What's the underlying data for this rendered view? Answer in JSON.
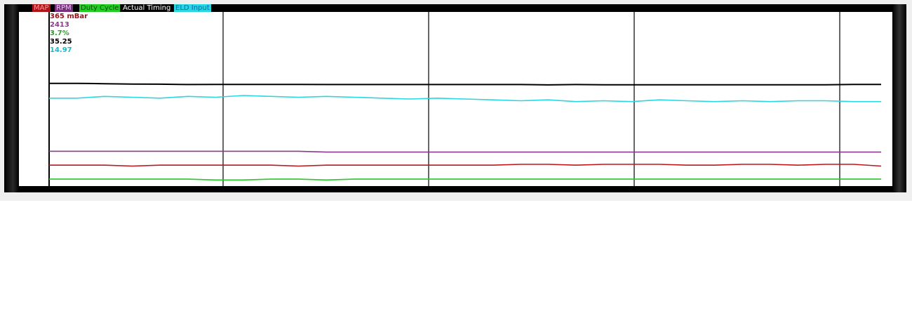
{
  "chart_data": {
    "type": "line",
    "title": "",
    "xlabel": "",
    "ylabel": "",
    "ylim": [
      0,
      100
    ],
    "grid": true,
    "legend_placement": "top-left",
    "series": [
      {
        "name": "MAP",
        "color": "#c0151b",
        "label_bg": "#b01419",
        "label_fg": "#ff9aa0",
        "readout": "365 mBar",
        "values": [
          12,
          12,
          12,
          11.5,
          12,
          12,
          12,
          12,
          12,
          11.5,
          12,
          12,
          12,
          12,
          12,
          12,
          12,
          12.5,
          12.5,
          12,
          12.5,
          12.5,
          12.5,
          12,
          12,
          12.5,
          12.5,
          12,
          12.5,
          12.5,
          11.5
        ]
      },
      {
        "name": "RPM",
        "color": "#8b3a8f",
        "label_bg": "#7a2f80",
        "label_fg": "#e8c8ea",
        "readout": "2413",
        "values": [
          20,
          20,
          20,
          20,
          20,
          20,
          20,
          20,
          20,
          20,
          19.5,
          19.5,
          19.5,
          19.5,
          19.5,
          19.5,
          19.5,
          19.5,
          19.5,
          19.5,
          19.5,
          19.5,
          19.5,
          19.5,
          19.5,
          19.5,
          19.5,
          19.5,
          19.5,
          19.5,
          19.5
        ]
      },
      {
        "name": "Duty Cycle",
        "color": "#22cc22",
        "label_bg": "#22cc22",
        "label_fg": "#0a4a0a",
        "readout": "3.7%",
        "values": [
          4,
          4,
          4,
          4,
          4,
          4,
          3.5,
          3.5,
          4,
          4,
          3.5,
          4,
          4,
          4,
          4,
          4,
          4,
          4,
          4,
          4,
          4,
          4,
          4,
          4,
          4,
          4,
          4,
          4,
          4,
          4,
          4
        ]
      },
      {
        "name": "Actual Timing",
        "color": "#000000",
        "label_bg": "#000000",
        "label_fg": "#ffffff",
        "readout": "35.25",
        "values": [
          59,
          59,
          58.8,
          58.6,
          58.5,
          58.3,
          58.4,
          58.4,
          58.4,
          58.4,
          58.3,
          58.3,
          58.3,
          58.3,
          58.3,
          58.3,
          58.3,
          58.3,
          58.1,
          58.3,
          58.2,
          58.2,
          58.2,
          58.2,
          58.2,
          58.2,
          58.2,
          58.2,
          58.2,
          58.4,
          58.4
        ]
      },
      {
        "name": "ELD Input",
        "color": "#2ad6e0",
        "label_bg": "#2ad6e0",
        "label_fg": "#1060c0",
        "readout": "14.97",
        "values": [
          50.5,
          50.5,
          51.5,
          51,
          50.5,
          51.5,
          51,
          52,
          51.5,
          51,
          51.5,
          51,
          50.5,
          50,
          50.5,
          50,
          49.5,
          49,
          49.5,
          48.5,
          49,
          48.5,
          49.5,
          49,
          48.5,
          49,
          48.5,
          49,
          49,
          48.5,
          48.5
        ]
      }
    ]
  }
}
